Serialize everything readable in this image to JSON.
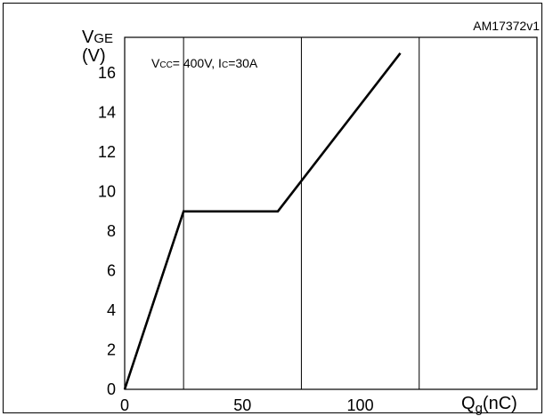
{
  "figure_id": "AM17372v1",
  "chart_data": {
    "type": "line",
    "annotation": {
      "vcc_sym": "V",
      "vcc_sub": "CC",
      "vcc_rest": "= 400V, I",
      "ic_sub": "C",
      "ic_rest": "=30A"
    },
    "ylabel": {
      "sym": "V",
      "sub": "GE",
      "unit": "(V)"
    },
    "xlabel": {
      "sym": "Q",
      "sub": "g",
      "unit": "(nC)"
    },
    "x_ticks": [
      0,
      50,
      100
    ],
    "y_ticks": [
      0,
      2,
      4,
      6,
      8,
      10,
      12,
      14,
      16
    ],
    "xlim": [
      0,
      175
    ],
    "ylim": [
      0,
      17.8
    ],
    "x_gridlines": [
      25,
      75,
      125
    ],
    "grid": "vertical",
    "series": [
      {
        "x": [
          0,
          25,
          65,
          117
        ],
        "y": [
          0,
          9,
          9,
          17
        ]
      }
    ]
  }
}
